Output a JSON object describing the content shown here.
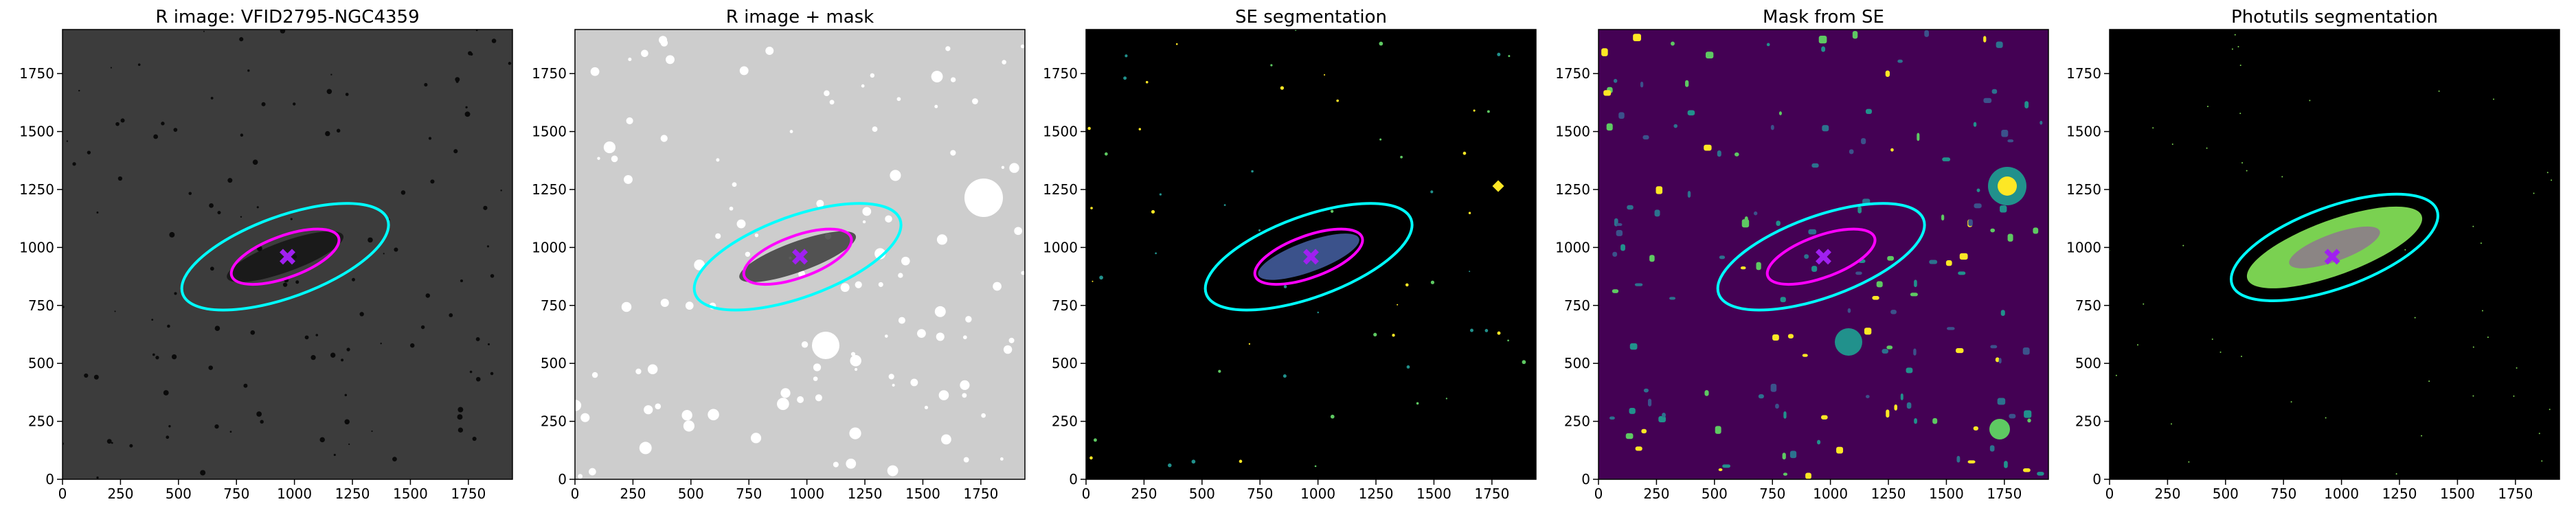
{
  "chart_data": [
    {
      "type": "image",
      "title": "R image: VFID2795-NGC4359",
      "background": "#3c3c3c",
      "xlim": [
        0,
        1940
      ],
      "ylim": [
        0,
        1940
      ],
      "xticks": [
        0,
        250,
        500,
        750,
        1000,
        1250,
        1500,
        1750
      ],
      "yticks": [
        0,
        250,
        500,
        750,
        1000,
        1250,
        1500,
        1750
      ],
      "ellipses": [
        {
          "color": "#00ffff",
          "x": 960,
          "y": 960,
          "a": 470,
          "b": 175,
          "angle": 20
        },
        {
          "color": "#ff00ff",
          "x": 960,
          "y": 960,
          "a": 245,
          "b": 90,
          "angle": 20
        }
      ],
      "marker": {
        "color": "#a020f0",
        "x": 970,
        "y": 960
      }
    },
    {
      "type": "image",
      "title": "R image + mask",
      "background": "#cdcdcd",
      "xlim": [
        0,
        1940
      ],
      "ylim": [
        0,
        1940
      ],
      "xticks": [
        0,
        250,
        500,
        750,
        1000,
        1250,
        1500,
        1750
      ],
      "yticks": [
        0,
        250,
        500,
        750,
        1000,
        1250,
        1500,
        1750
      ],
      "ellipses": [
        {
          "color": "#00ffff",
          "x": 960,
          "y": 960,
          "a": 470,
          "b": 175,
          "angle": 20
        },
        {
          "color": "#ff00ff",
          "x": 960,
          "y": 960,
          "a": 245,
          "b": 90,
          "angle": 20
        }
      ],
      "marker": {
        "color": "#a020f0",
        "x": 970,
        "y": 960
      }
    },
    {
      "type": "image",
      "title": "SE segmentation",
      "background": "#000000",
      "xlim": [
        0,
        1940
      ],
      "ylim": [
        0,
        1940
      ],
      "xticks": [
        0,
        250,
        500,
        750,
        1000,
        1250,
        1500,
        1750
      ],
      "yticks": [
        0,
        250,
        500,
        750,
        1000,
        1250,
        1500,
        1750
      ],
      "ellipses": [
        {
          "color": "#00ffff",
          "x": 960,
          "y": 960,
          "a": 470,
          "b": 175,
          "angle": 20
        },
        {
          "color": "#ff00ff",
          "x": 960,
          "y": 960,
          "a": 245,
          "b": 90,
          "angle": 20
        }
      ],
      "marker": {
        "color": "#a020f0",
        "x": 970,
        "y": 960
      }
    },
    {
      "type": "image",
      "title": "Mask from SE",
      "background": "#440154",
      "xlim": [
        0,
        1940
      ],
      "ylim": [
        0,
        1940
      ],
      "xticks": [
        0,
        250,
        500,
        750,
        1000,
        1250,
        1500,
        1750
      ],
      "yticks": [
        0,
        250,
        500,
        750,
        1000,
        1250,
        1500,
        1750
      ],
      "ellipses": [
        {
          "color": "#00ffff",
          "x": 960,
          "y": 960,
          "a": 470,
          "b": 175,
          "angle": 20
        },
        {
          "color": "#ff00ff",
          "x": 960,
          "y": 960,
          "a": 245,
          "b": 90,
          "angle": 20
        }
      ],
      "marker": {
        "color": "#a020f0",
        "x": 970,
        "y": 960
      }
    },
    {
      "type": "image",
      "title": "Photutils segmentation",
      "background": "#000000",
      "xlim": [
        0,
        1940
      ],
      "ylim": [
        0,
        1940
      ],
      "xticks": [
        0,
        250,
        500,
        750,
        1000,
        1250,
        1500,
        1750
      ],
      "yticks": [
        0,
        250,
        500,
        750,
        1000,
        1250,
        1500,
        1750
      ],
      "ellipses": [
        {
          "color": "#00ffff",
          "x": 970,
          "y": 1000,
          "a": 470,
          "b": 175,
          "angle": 20
        }
      ],
      "marker": {
        "color": "#a020f0",
        "x": 960,
        "y": 960
      }
    }
  ]
}
